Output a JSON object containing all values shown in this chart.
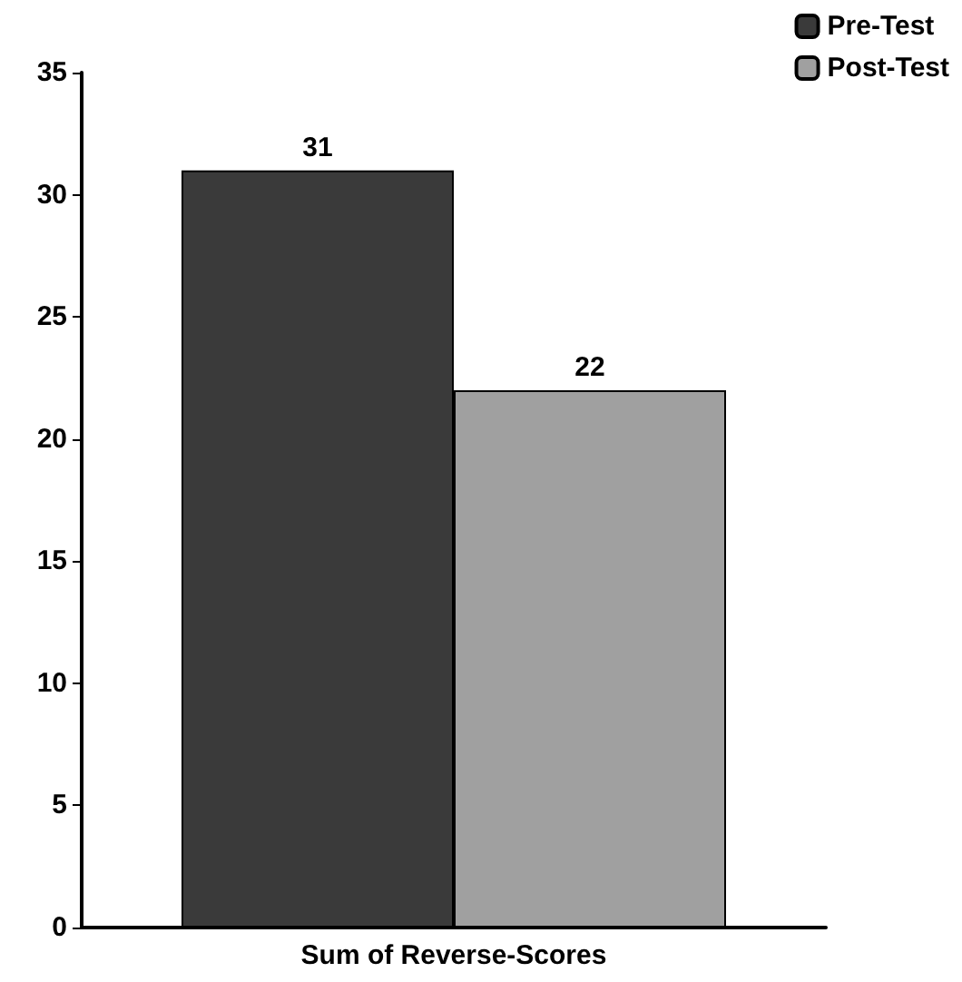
{
  "chart_data": {
    "type": "bar",
    "categories": [
      "Sum of Reverse-Scores"
    ],
    "series": [
      {
        "name": "Pre-Test",
        "color": "#3a3a3a",
        "values": [
          31
        ]
      },
      {
        "name": "Post-Test",
        "color": "#a0a0a0",
        "values": [
          22
        ]
      }
    ],
    "ylim": [
      0,
      35
    ],
    "yticks": [
      0,
      5,
      10,
      15,
      20,
      25,
      30,
      35
    ],
    "data_labels": true,
    "grid": false,
    "legend": "top right"
  }
}
